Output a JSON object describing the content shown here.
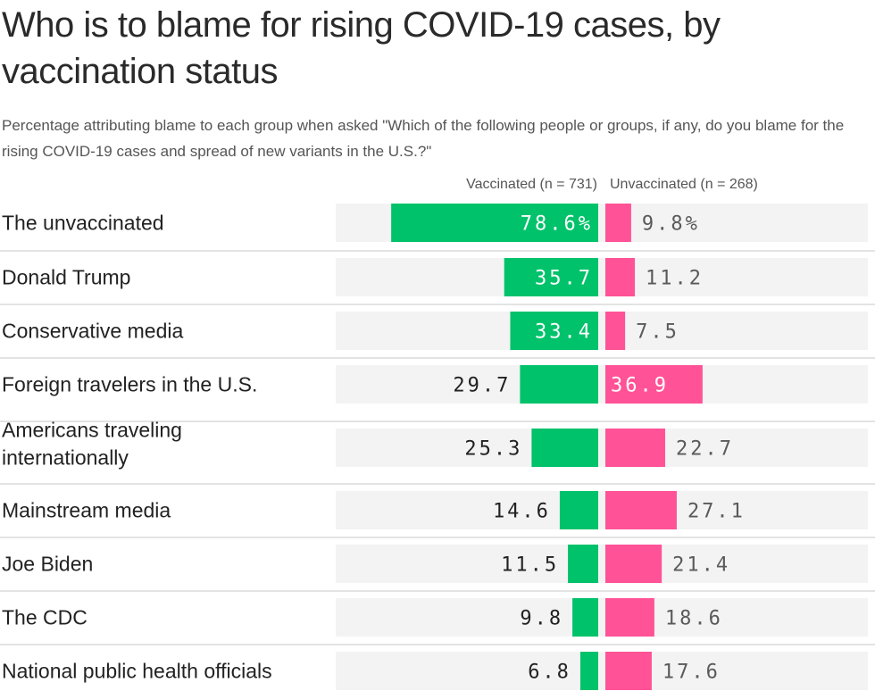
{
  "header": {
    "title": "Who is to blame for rising COVID-19 cases, by vaccination status",
    "subtitle": "Percentage attributing blame to each group when asked \"Which of the following people or groups, if any, do you blame for the rising COVID-19 cases and spread of new variants in the U.S.?\""
  },
  "colors": {
    "vaccinated": "#00c26a",
    "unvaccinated": "#ff5297",
    "track": "#f3f3f3",
    "divider": "#e3e3e3",
    "label_inside": "#ffffff",
    "label_outside_vax": "#222222",
    "label_outside_unvax": "#5a5a5a"
  },
  "chart_data": {
    "type": "bar",
    "orientation": "horizontal-diverging",
    "title": "Who is to blame for rising COVID-19 cases, by vaccination status",
    "subtitle": "Percentage attributing blame to each group when asked \"Which of the following people or groups, if any, do you blame for the rising COVID-19 cases and spread of new variants in the U.S.?\"",
    "xlabel": "",
    "ylabel": "",
    "unit": "%",
    "categories": [
      "The unvaccinated",
      "Donald Trump",
      "Conservative media",
      "Foreign travelers in the U.S.",
      "Americans traveling internationally",
      "Mainstream media",
      "Joe Biden",
      "The CDC",
      "National public health officials"
    ],
    "category_lines": [
      [
        "The unvaccinated"
      ],
      [
        "Donald Trump"
      ],
      [
        "Conservative media"
      ],
      [
        "Foreign travelers in the U.S."
      ],
      [
        "Americans traveling",
        "internationally"
      ],
      [
        "Mainstream media"
      ],
      [
        "Joe Biden"
      ],
      [
        "The CDC"
      ],
      [
        "National public health officials"
      ]
    ],
    "series": [
      {
        "name": "Vaccinated (n = 731)",
        "direction": "left",
        "values": [
          78.6,
          35.7,
          33.4,
          29.7,
          25.3,
          14.6,
          11.5,
          9.8,
          6.8
        ],
        "labels": [
          "78.6%",
          "35.7",
          "33.4",
          "29.7",
          "25.3",
          "14.6",
          "11.5",
          "9.8",
          "6.8"
        ]
      },
      {
        "name": "Unvaccinated (n = 268)",
        "direction": "right",
        "values": [
          9.8,
          11.2,
          7.5,
          36.9,
          22.7,
          27.1,
          21.4,
          18.6,
          17.6
        ],
        "labels": [
          "9.8%",
          "11.2",
          "7.5",
          "36.9",
          "22.7",
          "27.1",
          "21.4",
          "18.6",
          "17.6"
        ]
      }
    ],
    "xlim": [
      0,
      100
    ],
    "grid": false,
    "legend": "top (column headers)"
  }
}
